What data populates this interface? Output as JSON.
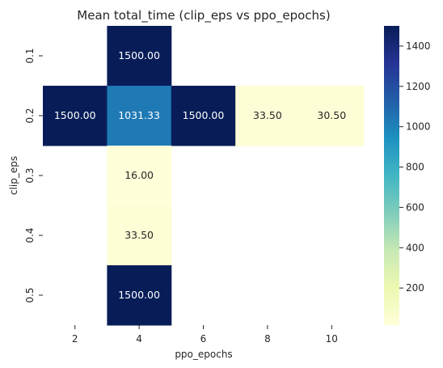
{
  "chart_data": {
    "type": "heatmap",
    "title": "Mean total_time (clip_eps vs ppo_epochs)",
    "xlabel": "ppo_epochs",
    "ylabel": "clip_eps",
    "x_categories": [
      "2",
      "4",
      "6",
      "8",
      "10"
    ],
    "y_categories": [
      "0.1",
      "0.2",
      "0.3",
      "0.4",
      "0.5"
    ],
    "values": [
      [
        null,
        1500.0,
        null,
        null,
        null
      ],
      [
        1500.0,
        1031.33,
        1500.0,
        33.5,
        30.5
      ],
      [
        null,
        16.0,
        null,
        null,
        null
      ],
      [
        null,
        33.5,
        null,
        null,
        null
      ],
      [
        null,
        1500.0,
        null,
        null,
        null
      ]
    ],
    "value_format": "2 decimals",
    "colormap": "YlGnBu",
    "color_range": [
      16.0,
      1500.0
    ],
    "colorbar_ticks": [
      200,
      400,
      600,
      800,
      1000,
      1200,
      1400
    ],
    "grid": false,
    "legend": "colorbar right"
  }
}
